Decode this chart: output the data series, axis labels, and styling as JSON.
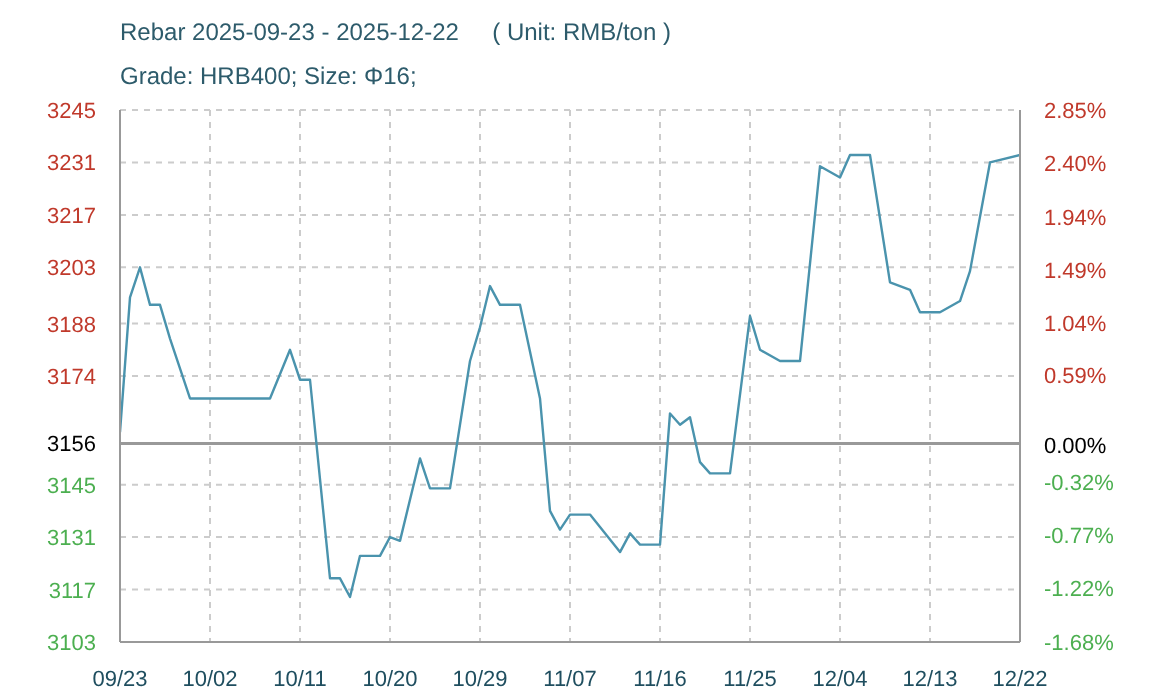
{
  "chart_data": {
    "type": "line",
    "title": "Rebar 2025-09-23 - 2025-12-22     ( Unit: RMB/ton )",
    "subtitle": "Grade: HRB400; Size: Φ16;",
    "x": [
      "2025-09-23",
      "2025-09-24",
      "2025-09-25",
      "2025-09-26",
      "2025-09-27",
      "2025-09-28",
      "2025-09-30",
      "2025-10-08",
      "2025-10-10",
      "2025-10-11",
      "2025-10-12",
      "2025-10-14",
      "2025-10-15",
      "2025-10-16",
      "2025-10-17",
      "2025-10-19",
      "2025-10-20",
      "2025-10-21",
      "2025-10-23",
      "2025-10-24",
      "2025-10-26",
      "2025-10-28",
      "2025-10-29",
      "2025-10-30",
      "2025-10-31",
      "2025-11-02",
      "2025-11-04",
      "2025-11-05",
      "2025-11-06",
      "2025-11-07",
      "2025-11-09",
      "2025-11-12",
      "2025-11-13",
      "2025-11-14",
      "2025-11-16",
      "2025-11-17",
      "2025-11-18",
      "2025-11-19",
      "2025-11-20",
      "2025-11-21",
      "2025-11-23",
      "2025-11-25",
      "2025-11-26",
      "2025-11-28",
      "2025-11-30",
      "2025-12-02",
      "2025-12-04",
      "2025-12-05",
      "2025-12-07",
      "2025-12-09",
      "2025-12-11",
      "2025-12-12",
      "2025-12-14",
      "2025-12-16",
      "2025-12-17",
      "2025-12-19",
      "2025-12-22"
    ],
    "series": [
      {
        "color": "#4a93ad",
        "values": [
          3159,
          3195,
          3203,
          3193,
          3193,
          3184,
          3168,
          3168,
          3181,
          3173,
          3173,
          3120,
          3120,
          3115,
          3126,
          3126,
          3131,
          3130,
          3152,
          3144,
          3144,
          3178,
          3187,
          3198,
          3193,
          3193,
          3168,
          3138,
          3133,
          3137,
          3137,
          3127,
          3132,
          3129,
          3129,
          3164,
          3161,
          3163,
          3151,
          3148,
          3148,
          3190,
          3181,
          3178,
          3178,
          3230,
          3227,
          3233,
          3233,
          3199,
          3197,
          3191,
          3191,
          3194,
          3202,
          3231,
          3233
        ]
      }
    ],
    "xlim": [
      "2025-09-23",
      "2025-12-22"
    ],
    "xticks": [
      {
        "value": "2025-09-23",
        "label": "09/23"
      },
      {
        "value": "2025-10-02",
        "label": "10/02"
      },
      {
        "value": "2025-10-11",
        "label": "10/11"
      },
      {
        "value": "2025-10-20",
        "label": "10/20"
      },
      {
        "value": "2025-10-29",
        "label": "10/29"
      },
      {
        "value": "2025-11-07",
        "label": "11/07"
      },
      {
        "value": "2025-11-16",
        "label": "11/16"
      },
      {
        "value": "2025-11-25",
        "label": "11/25"
      },
      {
        "value": "2025-12-04",
        "label": "12/04"
      },
      {
        "value": "2025-12-13",
        "label": "12/13"
      },
      {
        "value": "2025-12-22",
        "label": "12/22"
      }
    ],
    "ylim": [
      3103,
      3245
    ],
    "yticks": [
      3103,
      3117,
      3131,
      3145,
      3156,
      3174,
      3188,
      3203,
      3217,
      3231,
      3245
    ],
    "y2lim": [
      -1.68,
      2.85
    ],
    "y2ticks": [
      {
        "value": -1.68,
        "label": "-1.68%"
      },
      {
        "value": -1.22,
        "label": "-1.22%"
      },
      {
        "value": -0.77,
        "label": "-0.77%"
      },
      {
        "value": -0.32,
        "label": "-0.32%"
      },
      {
        "value": 0,
        "label": "0.00%"
      },
      {
        "value": 0.59,
        "label": "0.59%"
      },
      {
        "value": 1.04,
        "label": "1.04%"
      },
      {
        "value": 1.49,
        "label": "1.49%"
      },
      {
        "value": 1.94,
        "label": "1.94%"
      },
      {
        "value": 2.4,
        "label": "2.40%"
      },
      {
        "value": 2.85,
        "label": "2.85%"
      }
    ],
    "ref_lines": [
      {
        "axis": "y",
        "value": 3156,
        "color": "#999999"
      }
    ],
    "grid": true,
    "marker": "none",
    "line_style": "solid"
  }
}
